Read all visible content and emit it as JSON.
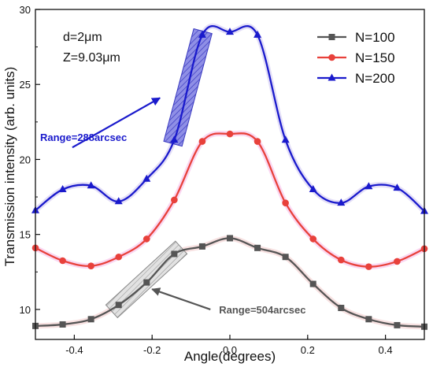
{
  "chart_data": {
    "type": "line",
    "xlabel": "Angle(degrees)",
    "ylabel": "Transmission intensity (arb. units)",
    "xlim": [
      -0.5,
      0.5
    ],
    "ylim": [
      8,
      30
    ],
    "xticks": [
      -0.4,
      -0.2,
      0.0,
      0.2,
      0.4
    ],
    "xtick_labels": [
      "-0.4",
      "-0.2",
      "0.0",
      "0.2",
      "0.4"
    ],
    "yticks": [
      10,
      15,
      20,
      25,
      30
    ],
    "ytick_labels": [
      "10",
      "15",
      "20",
      "25",
      "30"
    ],
    "grid": false,
    "legend_position": "top-right",
    "parameters": [
      "d=2μm",
      "Z=9.03μm"
    ],
    "series": [
      {
        "name": "N=100",
        "color": "#555555",
        "marker": "square",
        "x": [
          -0.5,
          -0.43,
          -0.357,
          -0.286,
          -0.214,
          -0.143,
          -0.071,
          0.0,
          0.071,
          0.143,
          0.214,
          0.286,
          0.357,
          0.43,
          0.5
        ],
        "y": [
          8.9,
          9.0,
          9.35,
          10.3,
          11.8,
          13.7,
          14.2,
          14.75,
          14.1,
          13.5,
          11.7,
          10.1,
          9.35,
          8.95,
          8.85
        ]
      },
      {
        "name": "N=150",
        "color": "#e8413b",
        "marker": "circle",
        "x": [
          -0.5,
          -0.43,
          -0.357,
          -0.286,
          -0.214,
          -0.143,
          -0.071,
          0.0,
          0.071,
          0.143,
          0.214,
          0.286,
          0.357,
          0.43,
          0.5
        ],
        "y": [
          14.1,
          13.25,
          12.9,
          13.5,
          14.7,
          17.3,
          21.2,
          21.7,
          21.2,
          17.1,
          14.7,
          13.3,
          12.85,
          13.2,
          14.05
        ]
      },
      {
        "name": "N=200",
        "color": "#1a1acc",
        "marker": "triangle",
        "x": [
          -0.5,
          -0.43,
          -0.357,
          -0.286,
          -0.214,
          -0.143,
          -0.071,
          0.0,
          0.071,
          0.143,
          0.214,
          0.286,
          0.357,
          0.43,
          0.5
        ],
        "y": [
          16.6,
          18.0,
          18.25,
          17.2,
          18.7,
          21.3,
          28.3,
          28.5,
          28.3,
          21.3,
          18.0,
          17.1,
          18.2,
          18.1,
          16.55
        ]
      }
    ],
    "annotations": [
      {
        "text": "Range=288arcsec",
        "color": "#1a1acc",
        "band_x": [
          -0.144,
          -0.072
        ],
        "band_y": [
          21.3,
          28.3
        ],
        "arrow_tail": [
          -0.405,
          20.8
        ],
        "arrow_head": [
          -0.18,
          24.1
        ],
        "text_at": [
          -0.5,
          21.5
        ]
      },
      {
        "text": "Range=504arcsec",
        "color": "#555555",
        "band_x": [
          -0.286,
          -0.143
        ],
        "band_y": [
          10.3,
          13.7
        ],
        "arrow_tail": [
          -0.05,
          10.0
        ],
        "arrow_head": [
          -0.2,
          11.35
        ],
        "text_at": [
          -0.04,
          10.0
        ]
      }
    ]
  }
}
